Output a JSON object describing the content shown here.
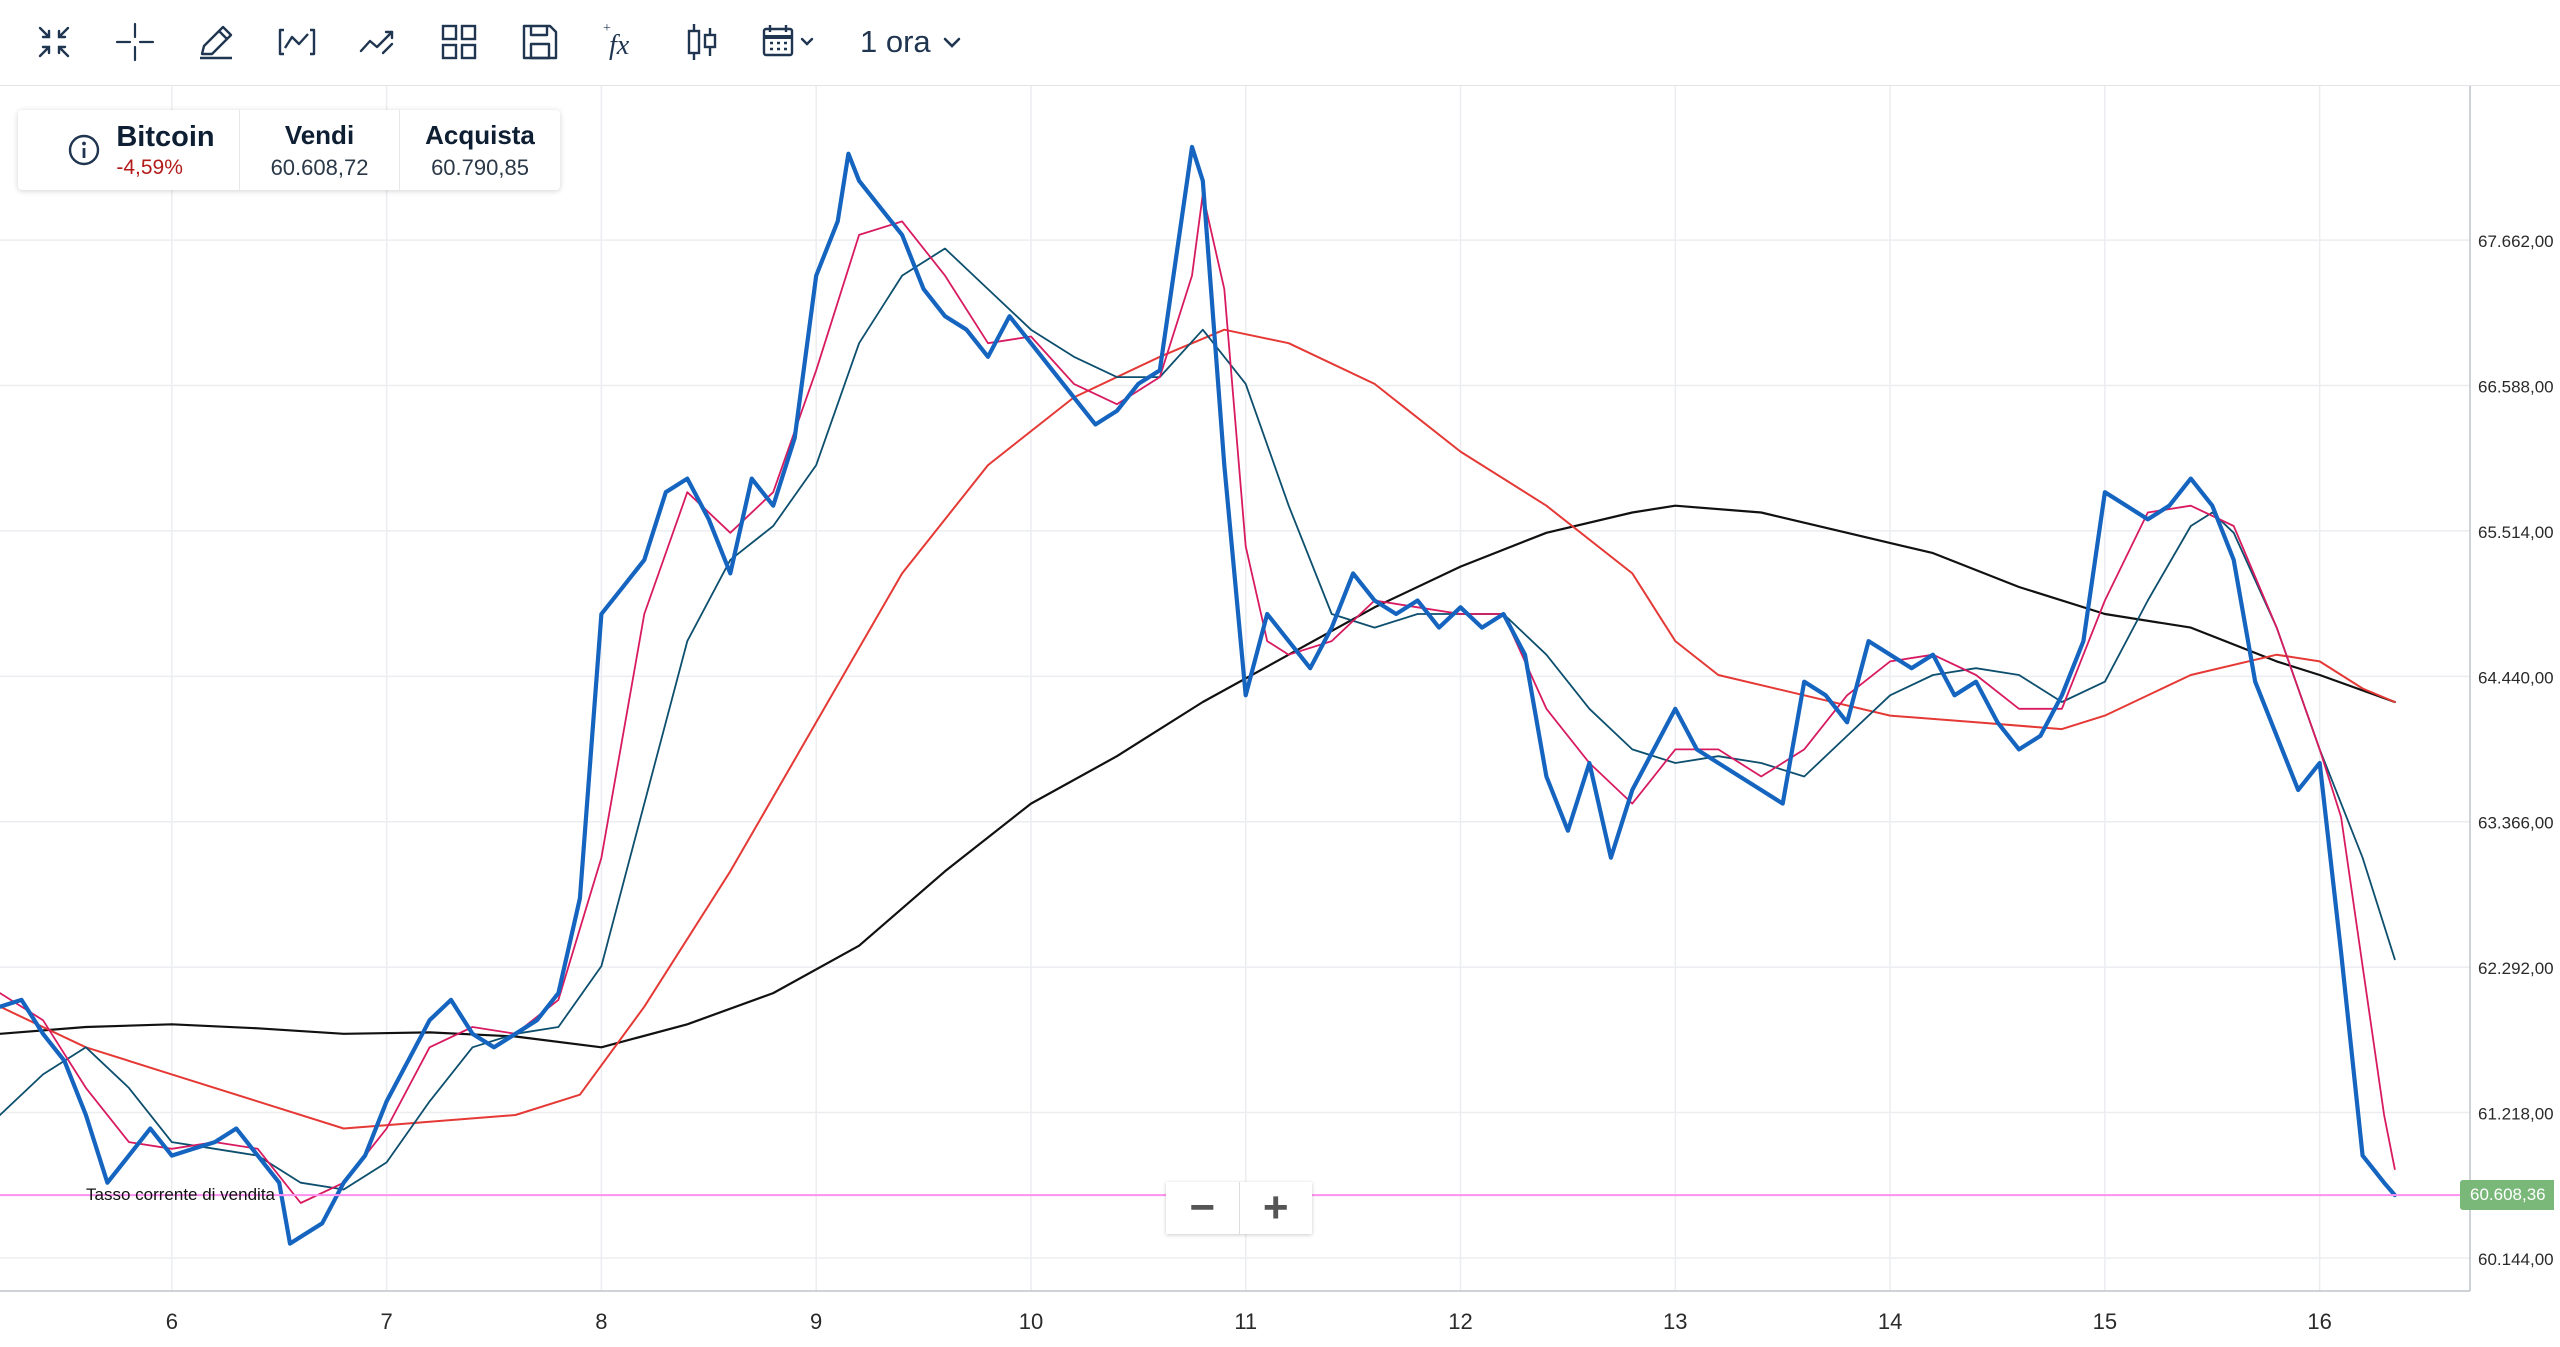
{
  "toolbar": {
    "icons": [
      "collapse-icon",
      "crosshair-icon",
      "pencil-icon",
      "chart-type-icon",
      "indicators-icon",
      "layout-icon",
      "save-icon",
      "function-icon",
      "candlestick-icon",
      "calendar-icon"
    ],
    "timeframe": "1 ora"
  },
  "instrument": {
    "name": "Bitcoin",
    "change": "-4,59%",
    "sell_label": "Vendi",
    "sell_value": "60.608,72",
    "buy_label": "Acquista",
    "buy_value": "60.790,85"
  },
  "zoom": {
    "minus": "−",
    "plus": "+"
  },
  "rate_label": "Tasso corrente di vendita",
  "current_price_badge": "60.608,36",
  "colors": {
    "price": "#1565c0",
    "ema_short": "#d81b60",
    "ema_mid": "#0d4f6e",
    "ema_long": "#e53935",
    "sma_long": "#111111",
    "current_line": "#ff8ff0",
    "badge": "#79b879"
  },
  "chart_data": {
    "type": "line",
    "x_tick_labels": [
      "6",
      "7",
      "8",
      "9",
      "10",
      "11",
      "12",
      "13",
      "14",
      "15",
      "16"
    ],
    "y_tick_labels": [
      "67.662,00",
      "66.588,00",
      "65.514,00",
      "64.440,00",
      "63.366,00",
      "62.292,00",
      "61.218,00",
      "60.144,00"
    ],
    "ylim": [
      59900,
      68800
    ],
    "xlim": [
      5.2,
      16.7
    ],
    "current_rate": 60608.36,
    "series": [
      {
        "key": "price",
        "points": [
          [
            5.2,
            62000
          ],
          [
            5.3,
            62050
          ],
          [
            5.4,
            61800
          ],
          [
            5.5,
            61600
          ],
          [
            5.6,
            61200
          ],
          [
            5.7,
            60700
          ],
          [
            5.8,
            60900
          ],
          [
            5.9,
            61100
          ],
          [
            6.0,
            60900
          ],
          [
            6.1,
            60950
          ],
          [
            6.2,
            61000
          ],
          [
            6.3,
            61100
          ],
          [
            6.4,
            60900
          ],
          [
            6.5,
            60700
          ],
          [
            6.55,
            60250
          ],
          [
            6.6,
            60300
          ],
          [
            6.7,
            60400
          ],
          [
            6.8,
            60700
          ],
          [
            6.9,
            60900
          ],
          [
            7.0,
            61300
          ],
          [
            7.1,
            61600
          ],
          [
            7.2,
            61900
          ],
          [
            7.3,
            62050
          ],
          [
            7.4,
            61800
          ],
          [
            7.5,
            61700
          ],
          [
            7.6,
            61800
          ],
          [
            7.7,
            61900
          ],
          [
            7.8,
            62100
          ],
          [
            7.9,
            62800
          ],
          [
            8.0,
            64900
          ],
          [
            8.1,
            65100
          ],
          [
            8.2,
            65300
          ],
          [
            8.3,
            65800
          ],
          [
            8.4,
            65900
          ],
          [
            8.5,
            65600
          ],
          [
            8.6,
            65200
          ],
          [
            8.7,
            65900
          ],
          [
            8.8,
            65700
          ],
          [
            8.9,
            66200
          ],
          [
            9.0,
            67400
          ],
          [
            9.1,
            67800
          ],
          [
            9.15,
            68300
          ],
          [
            9.2,
            68100
          ],
          [
            9.3,
            67900
          ],
          [
            9.4,
            67700
          ],
          [
            9.5,
            67300
          ],
          [
            9.6,
            67100
          ],
          [
            9.7,
            67000
          ],
          [
            9.8,
            66800
          ],
          [
            9.9,
            67100
          ],
          [
            10.0,
            66900
          ],
          [
            10.1,
            66700
          ],
          [
            10.2,
            66500
          ],
          [
            10.3,
            66300
          ],
          [
            10.4,
            66400
          ],
          [
            10.5,
            66600
          ],
          [
            10.6,
            66700
          ],
          [
            10.7,
            67800
          ],
          [
            10.75,
            68350
          ],
          [
            10.8,
            68100
          ],
          [
            10.9,
            66000
          ],
          [
            11.0,
            64300
          ],
          [
            11.1,
            64900
          ],
          [
            11.2,
            64700
          ],
          [
            11.3,
            64500
          ],
          [
            11.4,
            64800
          ],
          [
            11.5,
            65200
          ],
          [
            11.6,
            65000
          ],
          [
            11.7,
            64900
          ],
          [
            11.8,
            65000
          ],
          [
            11.9,
            64800
          ],
          [
            12.0,
            64950
          ],
          [
            12.1,
            64800
          ],
          [
            12.2,
            64900
          ],
          [
            12.3,
            64600
          ],
          [
            12.4,
            63700
          ],
          [
            12.5,
            63300
          ],
          [
            12.6,
            63800
          ],
          [
            12.7,
            63100
          ],
          [
            12.8,
            63600
          ],
          [
            12.9,
            63900
          ],
          [
            13.0,
            64200
          ],
          [
            13.1,
            63900
          ],
          [
            13.2,
            63800
          ],
          [
            13.3,
            63700
          ],
          [
            13.4,
            63600
          ],
          [
            13.5,
            63500
          ],
          [
            13.6,
            64400
          ],
          [
            13.7,
            64300
          ],
          [
            13.8,
            64100
          ],
          [
            13.9,
            64700
          ],
          [
            14.0,
            64600
          ],
          [
            14.1,
            64500
          ],
          [
            14.2,
            64600
          ],
          [
            14.3,
            64300
          ],
          [
            14.4,
            64400
          ],
          [
            14.5,
            64100
          ],
          [
            14.6,
            63900
          ],
          [
            14.7,
            64000
          ],
          [
            14.8,
            64300
          ],
          [
            14.9,
            64700
          ],
          [
            15.0,
            65800
          ],
          [
            15.1,
            65700
          ],
          [
            15.2,
            65600
          ],
          [
            15.3,
            65700
          ],
          [
            15.4,
            65900
          ],
          [
            15.5,
            65700
          ],
          [
            15.6,
            65300
          ],
          [
            15.7,
            64400
          ],
          [
            15.8,
            64000
          ],
          [
            15.9,
            63600
          ],
          [
            16.0,
            63800
          ],
          [
            16.1,
            62400
          ],
          [
            16.2,
            60900
          ],
          [
            16.3,
            60700
          ],
          [
            16.35,
            60608
          ]
        ]
      },
      {
        "key": "ema_short",
        "points": [
          [
            5.2,
            62100
          ],
          [
            5.4,
            61900
          ],
          [
            5.6,
            61400
          ],
          [
            5.8,
            61000
          ],
          [
            6.0,
            60950
          ],
          [
            6.2,
            61000
          ],
          [
            6.4,
            60950
          ],
          [
            6.6,
            60550
          ],
          [
            6.8,
            60700
          ],
          [
            7.0,
            61100
          ],
          [
            7.2,
            61700
          ],
          [
            7.4,
            61850
          ],
          [
            7.6,
            61800
          ],
          [
            7.8,
            62050
          ],
          [
            8.0,
            63100
          ],
          [
            8.2,
            64900
          ],
          [
            8.4,
            65800
          ],
          [
            8.6,
            65500
          ],
          [
            8.8,
            65800
          ],
          [
            9.0,
            66700
          ],
          [
            9.2,
            67700
          ],
          [
            9.4,
            67800
          ],
          [
            9.6,
            67400
          ],
          [
            9.8,
            66900
          ],
          [
            10.0,
            66950
          ],
          [
            10.2,
            66600
          ],
          [
            10.4,
            66450
          ],
          [
            10.6,
            66650
          ],
          [
            10.75,
            67400
          ],
          [
            10.8,
            68000
          ],
          [
            10.9,
            67300
          ],
          [
            11.0,
            65400
          ],
          [
            11.1,
            64700
          ],
          [
            11.2,
            64600
          ],
          [
            11.4,
            64700
          ],
          [
            11.6,
            65000
          ],
          [
            11.8,
            64950
          ],
          [
            12.0,
            64900
          ],
          [
            12.2,
            64900
          ],
          [
            12.4,
            64200
          ],
          [
            12.6,
            63800
          ],
          [
            12.8,
            63500
          ],
          [
            13.0,
            63900
          ],
          [
            13.2,
            63900
          ],
          [
            13.4,
            63700
          ],
          [
            13.6,
            63900
          ],
          [
            13.8,
            64300
          ],
          [
            14.0,
            64550
          ],
          [
            14.2,
            64600
          ],
          [
            14.4,
            64450
          ],
          [
            14.6,
            64200
          ],
          [
            14.8,
            64200
          ],
          [
            15.0,
            65000
          ],
          [
            15.2,
            65650
          ],
          [
            15.4,
            65700
          ],
          [
            15.6,
            65550
          ],
          [
            15.8,
            64800
          ],
          [
            16.0,
            63900
          ],
          [
            16.1,
            63400
          ],
          [
            16.2,
            62300
          ],
          [
            16.3,
            61200
          ],
          [
            16.35,
            60800
          ]
        ]
      },
      {
        "key": "ema_mid",
        "points": [
          [
            5.2,
            61200
          ],
          [
            5.4,
            61500
          ],
          [
            5.6,
            61700
          ],
          [
            5.8,
            61400
          ],
          [
            6.0,
            61000
          ],
          [
            6.2,
            60950
          ],
          [
            6.4,
            60900
          ],
          [
            6.6,
            60700
          ],
          [
            6.8,
            60650
          ],
          [
            7.0,
            60850
          ],
          [
            7.2,
            61300
          ],
          [
            7.4,
            61700
          ],
          [
            7.6,
            61800
          ],
          [
            7.8,
            61850
          ],
          [
            8.0,
            62300
          ],
          [
            8.2,
            63500
          ],
          [
            8.4,
            64700
          ],
          [
            8.6,
            65300
          ],
          [
            8.8,
            65550
          ],
          [
            9.0,
            66000
          ],
          [
            9.2,
            66900
          ],
          [
            9.4,
            67400
          ],
          [
            9.6,
            67600
          ],
          [
            9.8,
            67300
          ],
          [
            10.0,
            67000
          ],
          [
            10.2,
            66800
          ],
          [
            10.4,
            66650
          ],
          [
            10.6,
            66650
          ],
          [
            10.8,
            67000
          ],
          [
            11.0,
            66600
          ],
          [
            11.2,
            65700
          ],
          [
            11.4,
            64900
          ],
          [
            11.6,
            64800
          ],
          [
            11.8,
            64900
          ],
          [
            12.0,
            64900
          ],
          [
            12.2,
            64900
          ],
          [
            12.4,
            64600
          ],
          [
            12.6,
            64200
          ],
          [
            12.8,
            63900
          ],
          [
            13.0,
            63800
          ],
          [
            13.2,
            63850
          ],
          [
            13.4,
            63800
          ],
          [
            13.6,
            63700
          ],
          [
            13.8,
            64000
          ],
          [
            14.0,
            64300
          ],
          [
            14.2,
            64450
          ],
          [
            14.4,
            64500
          ],
          [
            14.6,
            64450
          ],
          [
            14.8,
            64250
          ],
          [
            15.0,
            64400
          ],
          [
            15.2,
            65000
          ],
          [
            15.4,
            65550
          ],
          [
            15.5,
            65650
          ],
          [
            15.6,
            65500
          ],
          [
            15.8,
            64800
          ],
          [
            16.0,
            63900
          ],
          [
            16.2,
            63100
          ],
          [
            16.35,
            62350
          ]
        ]
      },
      {
        "key": "ema_long",
        "points": [
          [
            5.2,
            62000
          ],
          [
            5.6,
            61700
          ],
          [
            6.0,
            61500
          ],
          [
            6.4,
            61300
          ],
          [
            6.8,
            61100
          ],
          [
            7.2,
            61150
          ],
          [
            7.6,
            61200
          ],
          [
            7.9,
            61350
          ],
          [
            8.2,
            62000
          ],
          [
            8.6,
            63000
          ],
          [
            9.0,
            64100
          ],
          [
            9.4,
            65200
          ],
          [
            9.8,
            66000
          ],
          [
            10.2,
            66500
          ],
          [
            10.6,
            66800
          ],
          [
            10.9,
            67000
          ],
          [
            11.2,
            66900
          ],
          [
            11.6,
            66600
          ],
          [
            12.0,
            66100
          ],
          [
            12.4,
            65700
          ],
          [
            12.8,
            65200
          ],
          [
            13.0,
            64700
          ],
          [
            13.2,
            64450
          ],
          [
            13.6,
            64300
          ],
          [
            14.0,
            64150
          ],
          [
            14.4,
            64100
          ],
          [
            14.8,
            64050
          ],
          [
            15.0,
            64150
          ],
          [
            15.4,
            64450
          ],
          [
            15.8,
            64600
          ],
          [
            16.0,
            64550
          ],
          [
            16.2,
            64350
          ],
          [
            16.35,
            64250
          ]
        ]
      },
      {
        "key": "sma_long",
        "points": [
          [
            5.2,
            61800
          ],
          [
            5.6,
            61850
          ],
          [
            6.0,
            61870
          ],
          [
            6.4,
            61840
          ],
          [
            6.8,
            61800
          ],
          [
            7.2,
            61810
          ],
          [
            7.6,
            61780
          ],
          [
            8.0,
            61700
          ],
          [
            8.4,
            61870
          ],
          [
            8.8,
            62100
          ],
          [
            9.2,
            62450
          ],
          [
            9.6,
            63000
          ],
          [
            10.0,
            63500
          ],
          [
            10.4,
            63850
          ],
          [
            10.8,
            64250
          ],
          [
            11.2,
            64600
          ],
          [
            11.6,
            64950
          ],
          [
            12.0,
            65250
          ],
          [
            12.4,
            65500
          ],
          [
            12.8,
            65650
          ],
          [
            13.0,
            65700
          ],
          [
            13.4,
            65650
          ],
          [
            13.8,
            65500
          ],
          [
            14.2,
            65350
          ],
          [
            14.6,
            65100
          ],
          [
            15.0,
            64900
          ],
          [
            15.4,
            64800
          ],
          [
            15.8,
            64550
          ],
          [
            16.0,
            64450
          ],
          [
            16.35,
            64250
          ]
        ]
      }
    ]
  }
}
